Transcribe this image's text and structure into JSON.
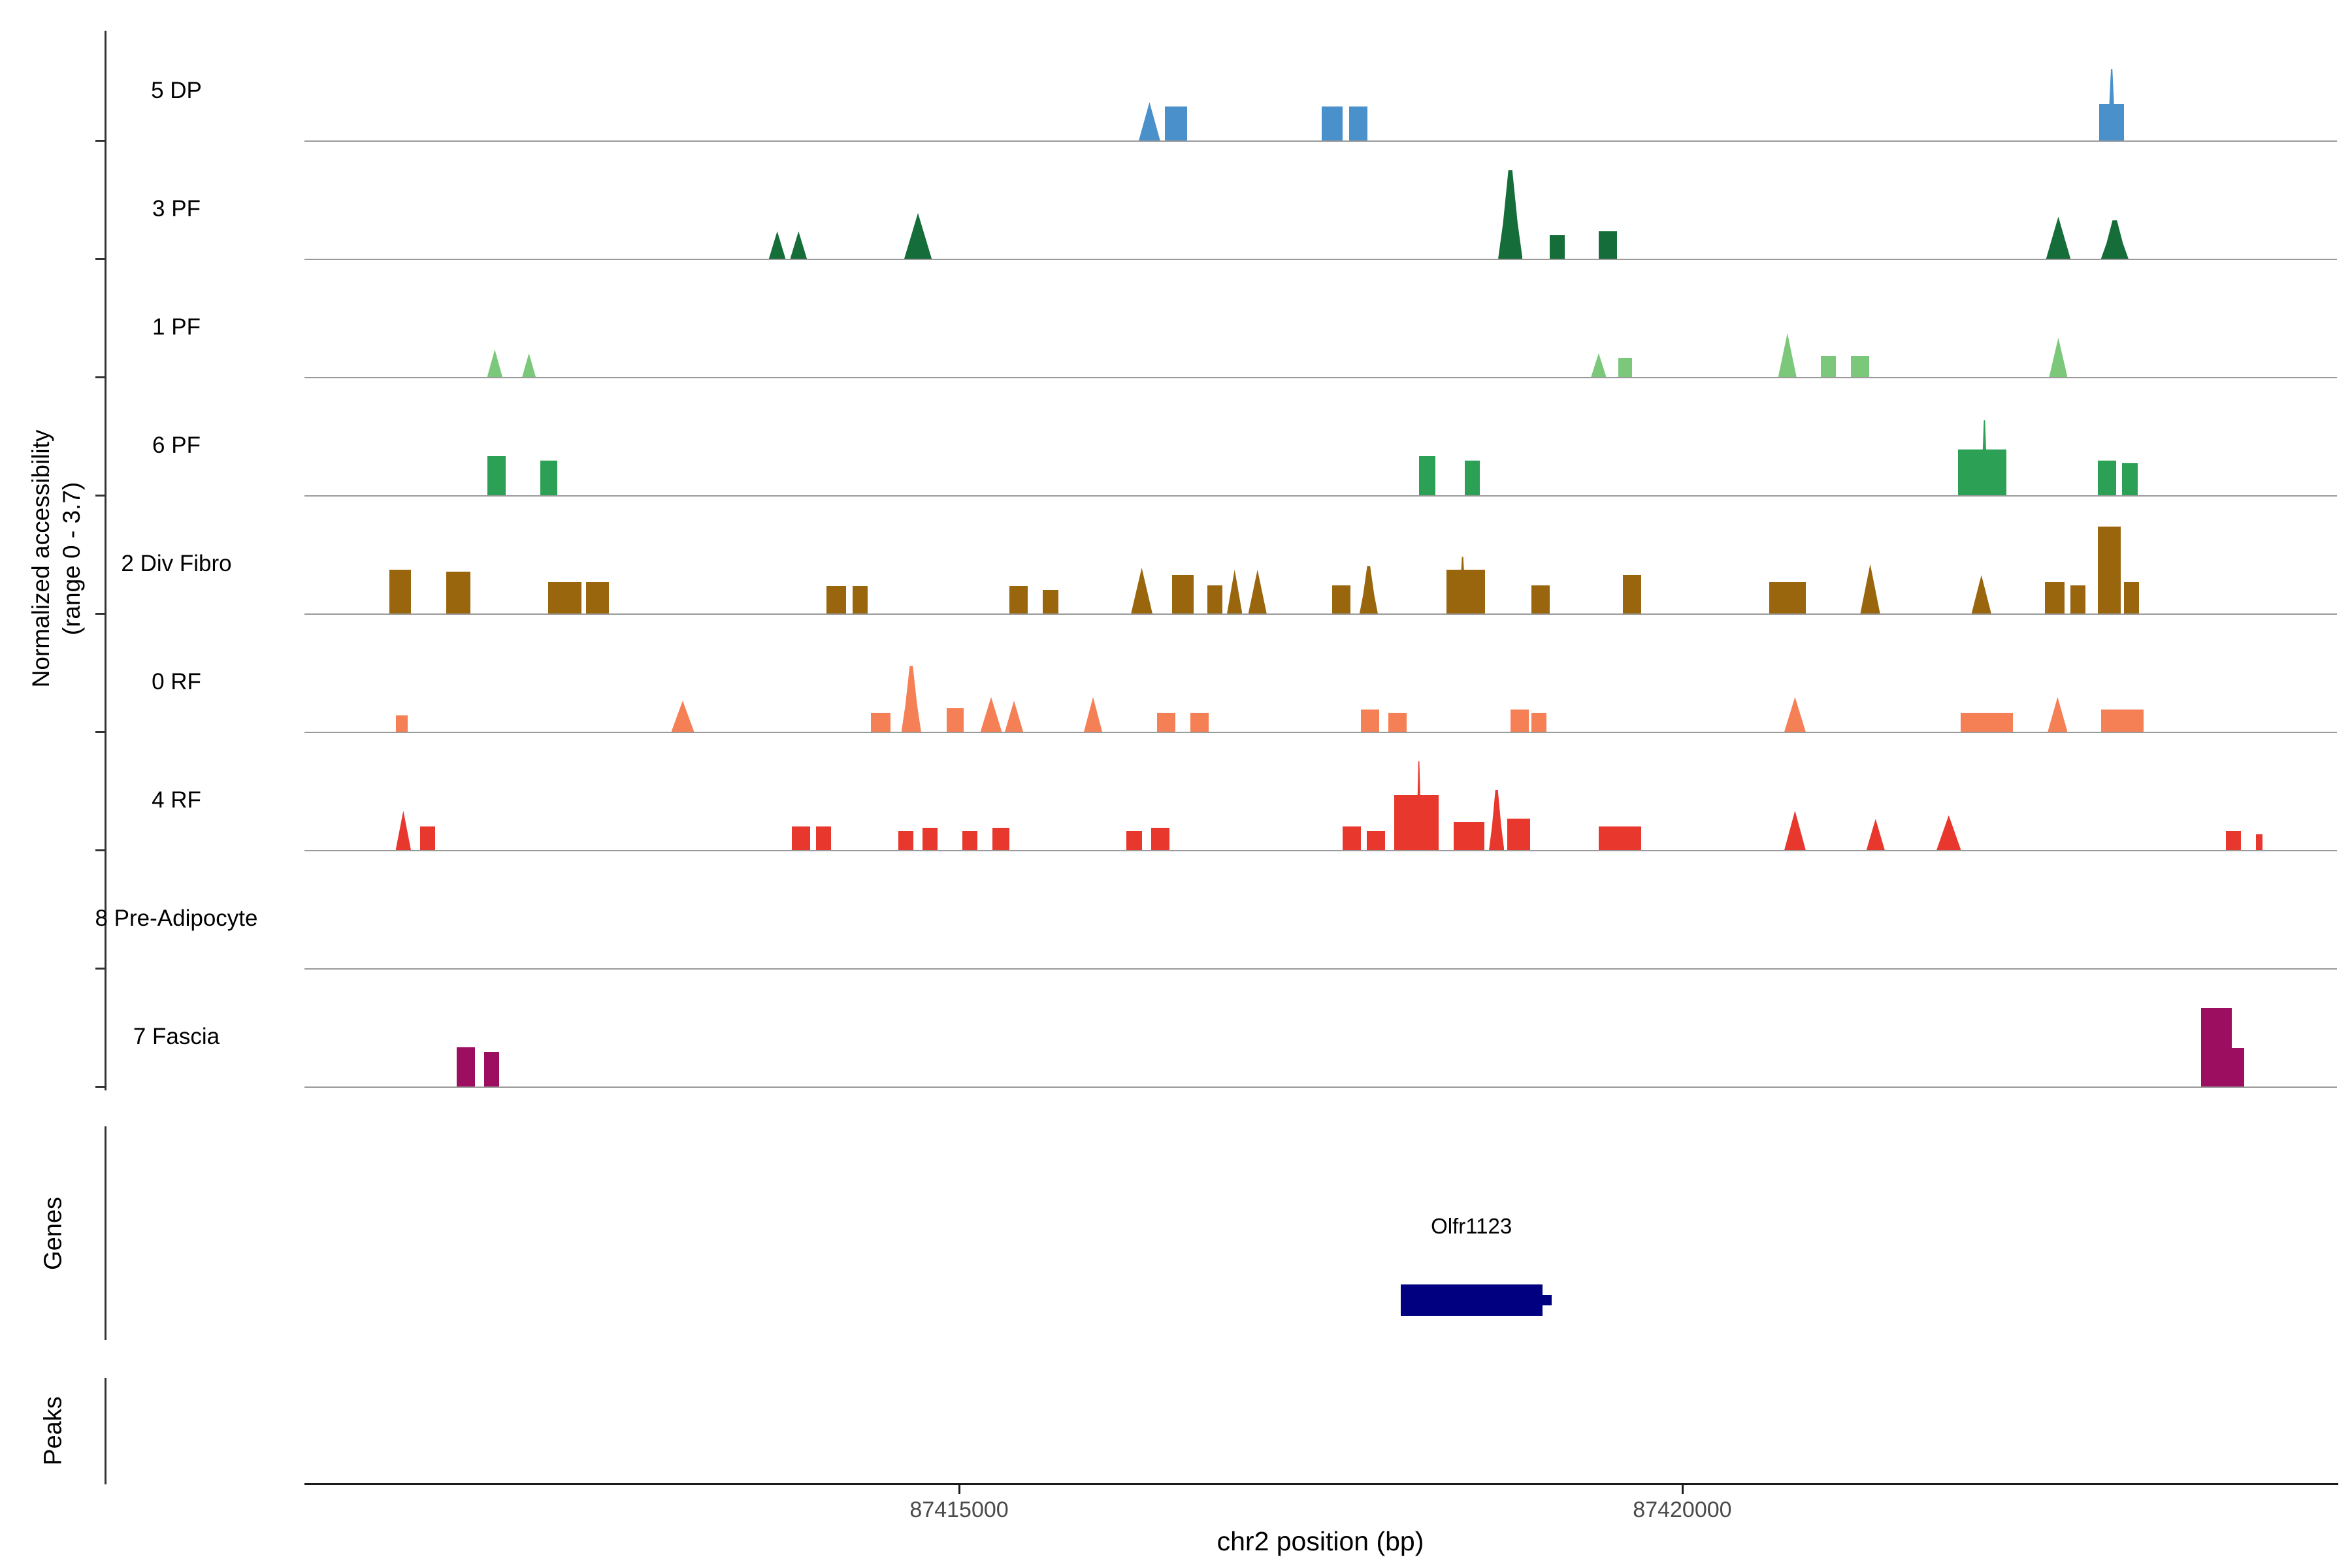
{
  "labels": {
    "y_axis_line1": "Normalized accessibility",
    "y_axis_line2": "(range 0 - 3.7)",
    "genes_section": "Genes",
    "peaks_section": "Peaks",
    "x_axis": "chr2 position (bp)"
  },
  "gene": {
    "name": "Olfr1123",
    "f_start": 0.5393,
    "f_end": 0.609
  },
  "chart_data": {
    "type": "area",
    "description": "Genome-browser style normalized chromatin accessibility signal tracks per cell cluster, plus gene and peak annotation tracks",
    "xlabel": "chr2 position (bp)",
    "ylabel": "Normalized accessibility (range 0 - 3.7)",
    "y_range": [
      0,
      3.7
    ],
    "x_range_bp": [
      87410500,
      87424500
    ],
    "x_ticks": [
      {
        "label": "87415000",
        "f": 0.3221
      },
      {
        "label": "87420000",
        "f": 0.6779
      }
    ],
    "peak_format": [
      "x_start_fraction_of_x_range",
      "width_fraction",
      "height_fraction_of_ymax_3.7",
      "shape r=rect t=triangle s=spike"
    ],
    "gene_annotations": [
      {
        "name": "Olfr1123",
        "f_start": 0.5393,
        "f_end": 0.609,
        "color": "#000080"
      }
    ],
    "peak_annotations": [],
    "tracks": [
      {
        "name": "5 DP",
        "color": "#4A91CB",
        "peaks": [
          [
            0.4105,
            0.0105,
            0.42,
            "t"
          ],
          [
            0.4232,
            0.0112,
            0.37,
            "r"
          ],
          [
            0.5004,
            0.0105,
            0.37,
            "r"
          ],
          [
            0.5139,
            0.009,
            0.37,
            "r"
          ],
          [
            0.8831,
            0.012,
            0.4,
            "r"
          ],
          [
            0.8869,
            0.0045,
            0.78,
            "s"
          ]
        ]
      },
      {
        "name": "3 PF",
        "color": "#156D39",
        "peaks": [
          [
            0.2285,
            0.0082,
            0.3,
            "t"
          ],
          [
            0.239,
            0.0082,
            0.3,
            "t"
          ],
          [
            0.2951,
            0.0135,
            0.5,
            "t"
          ],
          [
            0.5873,
            0.012,
            0.97,
            "s"
          ],
          [
            0.6127,
            0.0075,
            0.26,
            "r"
          ],
          [
            0.6367,
            0.009,
            0.3,
            "r"
          ],
          [
            0.8569,
            0.012,
            0.46,
            "t"
          ],
          [
            0.8839,
            0.0135,
            0.42,
            "s"
          ]
        ]
      },
      {
        "name": "1 PF",
        "color": "#7BC87B",
        "peaks": [
          [
            0.0899,
            0.0075,
            0.3,
            "t"
          ],
          [
            0.1071,
            0.0067,
            0.26,
            "t"
          ],
          [
            0.633,
            0.0075,
            0.26,
            "t"
          ],
          [
            0.6464,
            0.0067,
            0.21,
            "r"
          ],
          [
            0.7251,
            0.009,
            0.48,
            "t"
          ],
          [
            0.7461,
            0.0075,
            0.23,
            "r"
          ],
          [
            0.761,
            0.009,
            0.23,
            "r"
          ],
          [
            0.8584,
            0.009,
            0.43,
            "t"
          ]
        ]
      },
      {
        "name": "6 PF",
        "color": "#2CA156",
        "peaks": [
          [
            0.0899,
            0.009,
            0.43,
            "r"
          ],
          [
            0.1161,
            0.0082,
            0.38,
            "r"
          ],
          [
            0.5483,
            0.0082,
            0.43,
            "r"
          ],
          [
            0.5708,
            0.0075,
            0.38,
            "r"
          ],
          [
            0.8135,
            0.024,
            0.5,
            "r"
          ],
          [
            0.8247,
            0.0037,
            0.82,
            "s"
          ],
          [
            0.8824,
            0.009,
            0.38,
            "r"
          ],
          [
            0.8944,
            0.0075,
            0.35,
            "r"
          ]
        ]
      },
      {
        "name": "2 Div Fibro",
        "color": "#99660E",
        "peaks": [
          [
            0.0419,
            0.0105,
            0.48,
            "r"
          ],
          [
            0.0697,
            0.012,
            0.46,
            "r"
          ],
          [
            0.1199,
            0.0165,
            0.34,
            "r"
          ],
          [
            0.1386,
            0.0112,
            0.34,
            "r"
          ],
          [
            0.2569,
            0.0097,
            0.3,
            "r"
          ],
          [
            0.2697,
            0.0075,
            0.3,
            "r"
          ],
          [
            0.3468,
            0.009,
            0.3,
            "r"
          ],
          [
            0.3633,
            0.0075,
            0.26,
            "r"
          ],
          [
            0.4067,
            0.0105,
            0.5,
            "t"
          ],
          [
            0.427,
            0.0105,
            0.42,
            "r"
          ],
          [
            0.4442,
            0.0075,
            0.31,
            "r"
          ],
          [
            0.4539,
            0.0075,
            0.48,
            "t"
          ],
          [
            0.4644,
            0.009,
            0.48,
            "t"
          ],
          [
            0.5056,
            0.009,
            0.31,
            "r"
          ],
          [
            0.5191,
            0.009,
            0.52,
            "s"
          ],
          [
            0.5618,
            0.019,
            0.48,
            "r"
          ],
          [
            0.5678,
            0.004,
            0.62,
            "s"
          ],
          [
            0.6037,
            0.009,
            0.31,
            "r"
          ],
          [
            0.6487,
            0.009,
            0.42,
            "r"
          ],
          [
            0.7206,
            0.018,
            0.34,
            "r"
          ],
          [
            0.7655,
            0.0097,
            0.54,
            "t"
          ],
          [
            0.8202,
            0.0097,
            0.42,
            "t"
          ],
          [
            0.8562,
            0.0097,
            0.34,
            "r"
          ],
          [
            0.8689,
            0.0075,
            0.31,
            "r"
          ],
          [
            0.8824,
            0.0112,
            0.95,
            "r"
          ],
          [
            0.8951,
            0.0075,
            0.34,
            "r"
          ]
        ]
      },
      {
        "name": "0 RF",
        "color": "#F58055",
        "peaks": [
          [
            0.0449,
            0.006,
            0.18,
            "r"
          ],
          [
            0.1805,
            0.0112,
            0.34,
            "t"
          ],
          [
            0.2787,
            0.0097,
            0.21,
            "r"
          ],
          [
            0.2937,
            0.0097,
            0.72,
            "s"
          ],
          [
            0.3161,
            0.0082,
            0.26,
            "r"
          ],
          [
            0.3326,
            0.0105,
            0.38,
            "t"
          ],
          [
            0.3446,
            0.009,
            0.34,
            "t"
          ],
          [
            0.3835,
            0.009,
            0.38,
            "t"
          ],
          [
            0.4195,
            0.009,
            0.21,
            "r"
          ],
          [
            0.436,
            0.009,
            0.21,
            "r"
          ],
          [
            0.5199,
            0.009,
            0.24,
            "r"
          ],
          [
            0.5334,
            0.009,
            0.21,
            "r"
          ],
          [
            0.5933,
            0.009,
            0.24,
            "r"
          ],
          [
            0.6037,
            0.0075,
            0.21,
            "r"
          ],
          [
            0.7281,
            0.0105,
            0.38,
            "t"
          ],
          [
            0.815,
            0.0255,
            0.21,
            "r"
          ],
          [
            0.8577,
            0.0097,
            0.38,
            "t"
          ],
          [
            0.8839,
            0.021,
            0.24,
            "r"
          ]
        ]
      },
      {
        "name": "4 RF",
        "color": "#E8372C",
        "peaks": [
          [
            0.0449,
            0.0075,
            0.43,
            "t"
          ],
          [
            0.0569,
            0.0075,
            0.26,
            "r"
          ],
          [
            0.2397,
            0.009,
            0.26,
            "r"
          ],
          [
            0.2517,
            0.0075,
            0.26,
            "r"
          ],
          [
            0.2921,
            0.0075,
            0.21,
            "r"
          ],
          [
            0.3041,
            0.0075,
            0.24,
            "r"
          ],
          [
            0.3236,
            0.0075,
            0.21,
            "r"
          ],
          [
            0.3385,
            0.0082,
            0.24,
            "r"
          ],
          [
            0.4045,
            0.0075,
            0.21,
            "r"
          ],
          [
            0.4165,
            0.009,
            0.24,
            "r"
          ],
          [
            0.5109,
            0.009,
            0.26,
            "r"
          ],
          [
            0.5228,
            0.009,
            0.21,
            "r"
          ],
          [
            0.5363,
            0.0217,
            0.6,
            "r"
          ],
          [
            0.5468,
            0.003,
            0.97,
            "s"
          ],
          [
            0.5655,
            0.015,
            0.31,
            "r"
          ],
          [
            0.5828,
            0.0075,
            0.66,
            "s"
          ],
          [
            0.5918,
            0.0112,
            0.34,
            "r"
          ],
          [
            0.6367,
            0.021,
            0.26,
            "r"
          ],
          [
            0.7281,
            0.0105,
            0.43,
            "t"
          ],
          [
            0.7685,
            0.009,
            0.34,
            "t"
          ],
          [
            0.803,
            0.012,
            0.38,
            "t"
          ],
          [
            0.9454,
            0.0075,
            0.21,
            "r"
          ],
          [
            0.9603,
            0.003,
            0.17,
            "r"
          ]
        ]
      },
      {
        "name": "8 Pre-Adipocyte",
        "color": "#B89BC9",
        "peaks": []
      },
      {
        "name": "7 Fascia",
        "color": "#9C0E60",
        "peaks": [
          [
            0.0749,
            0.009,
            0.43,
            "r"
          ],
          [
            0.0884,
            0.0075,
            0.38,
            "r"
          ],
          [
            0.9333,
            0.015,
            0.86,
            "r"
          ],
          [
            0.9483,
            0.006,
            0.42,
            "r"
          ]
        ]
      }
    ]
  }
}
